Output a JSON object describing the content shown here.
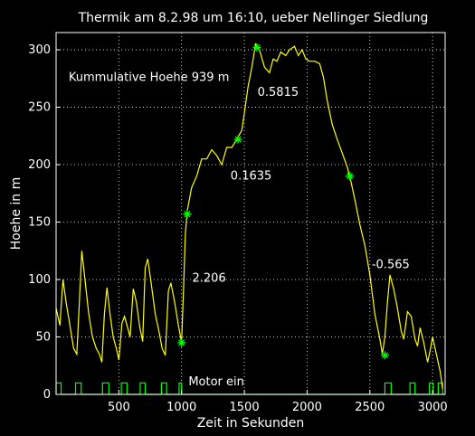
{
  "chart_data": {
    "type": "line",
    "title": "Thermik am 8.2.98 um 16:10, ueber Nellinger Siedlung",
    "xlabel": "Zeit in Sekunden",
    "ylabel": "Hoehe in m",
    "xlim": [
      0,
      3100
    ],
    "ylim": [
      0,
      315
    ],
    "xticks": [
      500,
      1000,
      1500,
      2000,
      2500,
      3000
    ],
    "yticks": [
      0,
      50,
      100,
      150,
      200,
      250,
      300
    ],
    "grid": true,
    "colors": {
      "background": "#000000",
      "axis": "#ffffff",
      "grid": "#ffffff",
      "series": "#ffff00",
      "markers": "#00ff00"
    },
    "series": [
      {
        "values": [
          [
            0,
            75
          ],
          [
            30,
            60
          ],
          [
            55,
            100
          ],
          [
            80,
            80
          ],
          [
            110,
            60
          ],
          [
            140,
            40
          ],
          [
            165,
            35
          ],
          [
            185,
            80
          ],
          [
            205,
            125
          ],
          [
            230,
            100
          ],
          [
            260,
            70
          ],
          [
            290,
            50
          ],
          [
            320,
            40
          ],
          [
            345,
            35
          ],
          [
            365,
            28
          ],
          [
            385,
            70
          ],
          [
            405,
            93
          ],
          [
            430,
            70
          ],
          [
            455,
            50
          ],
          [
            480,
            40
          ],
          [
            500,
            30
          ],
          [
            525,
            62
          ],
          [
            545,
            68
          ],
          [
            570,
            58
          ],
          [
            590,
            50
          ],
          [
            615,
            92
          ],
          [
            640,
            80
          ],
          [
            665,
            60
          ],
          [
            690,
            46
          ],
          [
            710,
            110
          ],
          [
            730,
            118
          ],
          [
            760,
            95
          ],
          [
            790,
            70
          ],
          [
            820,
            55
          ],
          [
            845,
            40
          ],
          [
            870,
            34
          ],
          [
            895,
            90
          ],
          [
            915,
            97
          ],
          [
            945,
            80
          ],
          [
            975,
            60
          ],
          [
            1000,
            45
          ],
          [
            1015,
            90
          ],
          [
            1030,
            140
          ],
          [
            1045,
            160
          ],
          [
            1080,
            180
          ],
          [
            1120,
            190
          ],
          [
            1160,
            205
          ],
          [
            1200,
            205
          ],
          [
            1240,
            213
          ],
          [
            1280,
            208
          ],
          [
            1320,
            200
          ],
          [
            1360,
            215
          ],
          [
            1400,
            215
          ],
          [
            1440,
            222
          ],
          [
            1480,
            230
          ],
          [
            1500,
            245
          ],
          [
            1530,
            268
          ],
          [
            1560,
            285
          ],
          [
            1590,
            305
          ],
          [
            1620,
            300
          ],
          [
            1660,
            285
          ],
          [
            1700,
            280
          ],
          [
            1730,
            292
          ],
          [
            1760,
            290
          ],
          [
            1790,
            298
          ],
          [
            1830,
            295
          ],
          [
            1860,
            300
          ],
          [
            1900,
            303
          ],
          [
            1930,
            295
          ],
          [
            1960,
            300
          ],
          [
            1990,
            292
          ],
          [
            2020,
            290
          ],
          [
            2060,
            290
          ],
          [
            2100,
            288
          ],
          [
            2130,
            276
          ],
          [
            2160,
            256
          ],
          [
            2200,
            235
          ],
          [
            2240,
            222
          ],
          [
            2280,
            210
          ],
          [
            2320,
            198
          ],
          [
            2350,
            185
          ],
          [
            2380,
            170
          ],
          [
            2420,
            148
          ],
          [
            2460,
            130
          ],
          [
            2500,
            104
          ],
          [
            2540,
            70
          ],
          [
            2580,
            48
          ],
          [
            2600,
            35
          ],
          [
            2620,
            50
          ],
          [
            2640,
            80
          ],
          [
            2660,
            104
          ],
          [
            2690,
            92
          ],
          [
            2720,
            75
          ],
          [
            2750,
            55
          ],
          [
            2770,
            48
          ],
          [
            2800,
            72
          ],
          [
            2830,
            68
          ],
          [
            2860,
            48
          ],
          [
            2880,
            42
          ],
          [
            2900,
            58
          ],
          [
            2930,
            45
          ],
          [
            2960,
            28
          ],
          [
            2980,
            38
          ],
          [
            3000,
            50
          ],
          [
            3030,
            35
          ],
          [
            3060,
            20
          ],
          [
            3080,
            5
          ]
        ]
      }
    ],
    "markers": [
      {
        "x": 1000,
        "y": 45
      },
      {
        "x": 1045,
        "y": 157
      },
      {
        "x": 1450,
        "y": 222
      },
      {
        "x": 1600,
        "y": 302
      },
      {
        "x": 2340,
        "y": 190
      },
      {
        "x": 2620,
        "y": 34
      }
    ],
    "motor_pulses": [
      {
        "x0": 0,
        "x1": 40
      },
      {
        "x0": 155,
        "x1": 200
      },
      {
        "x0": 370,
        "x1": 420
      },
      {
        "x0": 520,
        "x1": 565
      },
      {
        "x0": 670,
        "x1": 710
      },
      {
        "x0": 840,
        "x1": 880
      },
      {
        "x0": 980,
        "x1": 1000
      },
      {
        "x0": 2620,
        "x1": 2670
      },
      {
        "x0": 2820,
        "x1": 2860
      },
      {
        "x0": 2975,
        "x1": 3005
      },
      {
        "x0": 3045,
        "x1": 3080
      }
    ],
    "annotations": [
      {
        "text": "Kummulative Hoehe 939 m",
        "x": 100,
        "y": 273
      },
      {
        "text": "0.5815",
        "x": 1605,
        "y": 260
      },
      {
        "text": "0.1635",
        "x": 1390,
        "y": 187
      },
      {
        "text": "2.206",
        "x": 1085,
        "y": 98
      },
      {
        "text": "-0.565",
        "x": 2515,
        "y": 110
      },
      {
        "text": "Motor ein",
        "x": 1055,
        "y": 8
      }
    ]
  }
}
